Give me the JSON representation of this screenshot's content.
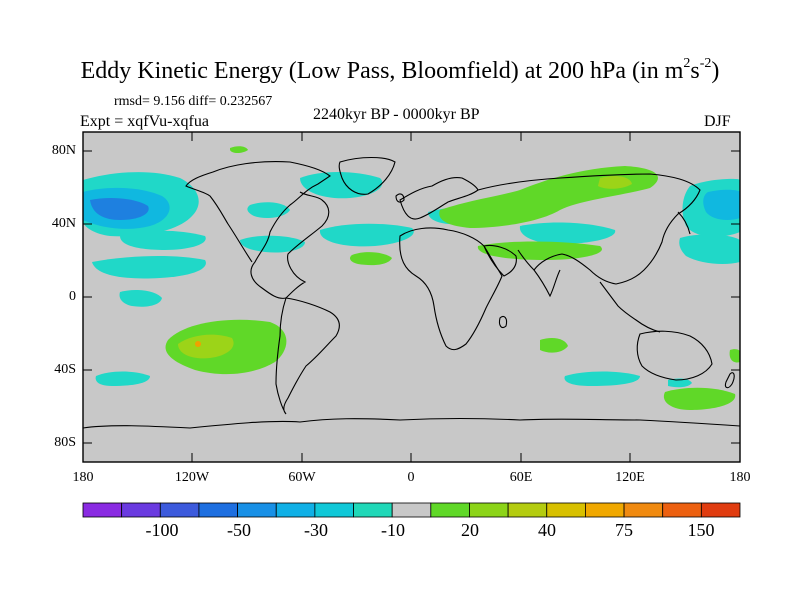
{
  "title": {
    "main": "Eddy Kinetic Energy (Low Pass, Bloomfield) at 200 hPa (in m",
    "sup1": "2",
    "mid": "s",
    "sup2": "-2",
    "end": ")"
  },
  "stats": "rmsd= 9.156 diff= 0.232567",
  "experiment": "Expt = xqfVu-xqfua",
  "period": "2240kyr BP - 0000kyr BP",
  "season": "DJF",
  "lat_ticks": [
    "80N",
    "40N",
    "0",
    "40S",
    "80S"
  ],
  "lon_ticks": [
    "180",
    "120W",
    "60W",
    "0",
    "60E",
    "120E",
    "180"
  ],
  "colorbar": {
    "colors": [
      "#8a2be2",
      "#6a3ae0",
      "#3c5adc",
      "#1e6fe0",
      "#1890e6",
      "#10b0e6",
      "#10c8d8",
      "#20d8b8",
      "#c8c8c8",
      "#60d828",
      "#8cd418",
      "#b4cc10",
      "#d8c000",
      "#f0a800",
      "#f08a10",
      "#ec6010",
      "#e03c10"
    ],
    "labels": [
      "-100",
      "-50",
      "-30",
      "-10",
      "20",
      "40",
      "75",
      "150"
    ]
  },
  "legend_colors": {
    "land_ocean": "#c8c8c8",
    "cyan_light": "#20d8c8",
    "cyan": "#10b8e0",
    "blue": "#1e80e0",
    "green": "#60d828",
    "green_yellow": "#9cd418",
    "orange": "#f0a000"
  }
}
